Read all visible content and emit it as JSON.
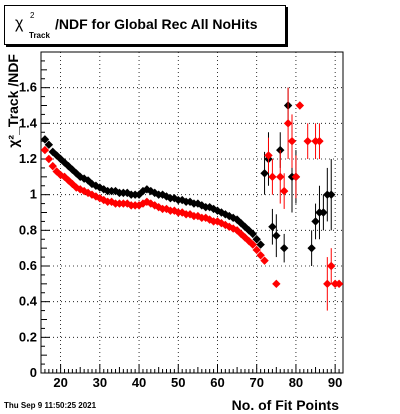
{
  "title": {
    "symbol": "χ",
    "sup": "2",
    "sub": "Track",
    "text": "/NDF for Global Rec All NoHits"
  },
  "datestamp": "Thu Sep  9 11:50:25 2021",
  "colors": {
    "series_black": "#000000",
    "series_red": "#ff0000",
    "axis": "#000000",
    "grid": "#000000"
  },
  "chart_data": {
    "type": "scatter",
    "title": "χ²_Track /NDF for Global Rec All NoHits",
    "xlabel": "No. of Fit Points",
    "ylabel": "χ²_Track /NDF",
    "xlim": [
      15,
      92
    ],
    "ylim": [
      0,
      1.8
    ],
    "xticks": [
      20,
      30,
      40,
      50,
      60,
      70,
      80,
      90
    ],
    "yticks": [
      0,
      0.2,
      0.4,
      0.6,
      0.8,
      1,
      1.2,
      1.4,
      1.6
    ],
    "ytick_labels": [
      "0",
      "0.2",
      "0.4",
      "0.6",
      "0.8",
      "1",
      "1.2",
      "1.4",
      "1.6"
    ],
    "grid": true,
    "series": [
      {
        "color": "#000000",
        "x": [
          16,
          17,
          18,
          19,
          20,
          21,
          22,
          23,
          24,
          25,
          26,
          27,
          28,
          29,
          30,
          31,
          32,
          33,
          34,
          35,
          36,
          37,
          38,
          39,
          40,
          41,
          42,
          43,
          44,
          45,
          46,
          47,
          48,
          49,
          50,
          51,
          52,
          53,
          54,
          55,
          56,
          57,
          58,
          59,
          60,
          61,
          62,
          63,
          64,
          65,
          66,
          67,
          68,
          69,
          70,
          71,
          72,
          73,
          74,
          75,
          76,
          77,
          78,
          79,
          80,
          81,
          82,
          83,
          84,
          85,
          86,
          87,
          88,
          89,
          90
        ],
        "y": [
          1.31,
          1.28,
          1.24,
          1.22,
          1.2,
          1.18,
          1.16,
          1.14,
          1.12,
          1.1,
          1.09,
          1.08,
          1.06,
          1.05,
          1.04,
          1.03,
          1.02,
          1.02,
          1.02,
          1.01,
          1.01,
          1.01,
          1.0,
          1.0,
          1.0,
          1.02,
          1.03,
          1.02,
          1.01,
          1.0,
          1.0,
          0.99,
          0.98,
          0.98,
          0.97,
          0.97,
          0.96,
          0.96,
          0.95,
          0.95,
          0.94,
          0.93,
          0.93,
          0.92,
          0.91,
          0.9,
          0.89,
          0.88,
          0.87,
          0.86,
          0.84,
          0.82,
          0.8,
          0.78,
          0.75,
          0.72,
          1.12,
          1.2,
          0.82,
          0.77,
          1.25,
          0.7,
          1.5,
          1.1,
          1.1,
          null,
          null,
          null,
          0.7,
          0.85,
          0.9,
          0.9,
          1.0,
          1.0,
          null
        ],
        "yerr": [
          0,
          0,
          0,
          0,
          0,
          0,
          0,
          0,
          0,
          0,
          0,
          0,
          0,
          0,
          0,
          0,
          0,
          0,
          0,
          0,
          0,
          0,
          0,
          0,
          0,
          0,
          0,
          0,
          0,
          0,
          0,
          0,
          0,
          0,
          0,
          0,
          0,
          0,
          0,
          0,
          0,
          0,
          0,
          0,
          0,
          0,
          0,
          0,
          0,
          0,
          0,
          0,
          0,
          0,
          0,
          0,
          0.12,
          0.15,
          0.1,
          0.12,
          0.1,
          0.08,
          0.1,
          0.2,
          0.15,
          0,
          0,
          0,
          0.1,
          0.1,
          0.15,
          0.1,
          0.15,
          0.2,
          0
        ]
      },
      {
        "color": "#ff0000",
        "x": [
          16,
          17,
          18,
          19,
          20,
          21,
          22,
          23,
          24,
          25,
          26,
          27,
          28,
          29,
          30,
          31,
          32,
          33,
          34,
          35,
          36,
          37,
          38,
          39,
          40,
          41,
          42,
          43,
          44,
          45,
          46,
          47,
          48,
          49,
          50,
          51,
          52,
          53,
          54,
          55,
          56,
          57,
          58,
          59,
          60,
          61,
          62,
          63,
          64,
          65,
          66,
          67,
          68,
          69,
          70,
          71,
          72,
          73,
          74,
          75,
          76,
          77,
          78,
          79,
          80,
          81,
          82,
          83,
          84,
          85,
          86,
          87,
          88,
          89,
          90,
          91
        ],
        "y": [
          1.25,
          1.2,
          1.16,
          1.13,
          1.11,
          1.1,
          1.08,
          1.06,
          1.04,
          1.03,
          1.02,
          1.01,
          1.0,
          0.99,
          0.98,
          0.97,
          0.96,
          0.96,
          0.95,
          0.95,
          0.95,
          0.95,
          0.94,
          0.94,
          0.94,
          0.95,
          0.96,
          0.95,
          0.94,
          0.93,
          0.92,
          0.92,
          0.91,
          0.91,
          0.9,
          0.9,
          0.89,
          0.89,
          0.88,
          0.88,
          0.87,
          0.87,
          0.86,
          0.85,
          0.85,
          0.84,
          0.83,
          0.82,
          0.81,
          0.8,
          0.78,
          0.76,
          0.74,
          0.72,
          0.69,
          0.66,
          0.63,
          1.22,
          1.1,
          0.5,
          1.1,
          1.02,
          1.4,
          1.3,
          1.1,
          1.5,
          null,
          1.3,
          null,
          1.3,
          1.3,
          null,
          0.5,
          0.6,
          0.5,
          0.5
        ],
        "yerr": [
          0,
          0,
          0,
          0,
          0,
          0,
          0,
          0,
          0,
          0,
          0,
          0,
          0,
          0,
          0,
          0,
          0,
          0,
          0,
          0,
          0,
          0,
          0,
          0,
          0,
          0,
          0,
          0,
          0,
          0,
          0,
          0,
          0,
          0,
          0,
          0,
          0,
          0,
          0,
          0,
          0,
          0,
          0,
          0,
          0,
          0,
          0,
          0,
          0,
          0,
          0,
          0,
          0,
          0,
          0,
          0,
          0,
          0.1,
          0.1,
          0,
          0.15,
          0.1,
          0.2,
          0.15,
          0.12,
          0,
          0,
          0.1,
          0,
          0.1,
          0.1,
          0,
          0.15,
          0.1,
          0,
          0
        ]
      }
    ]
  }
}
